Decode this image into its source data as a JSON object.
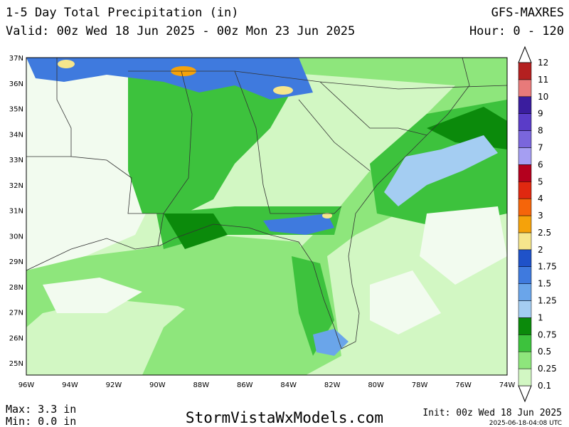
{
  "header": {
    "title": "1-5 Day Total Precipitation (in)",
    "valid": "Valid: 00z Wed 18 Jun 2025 - 00z Mon 23 Jun 2025",
    "model": "GFS-MAXRES",
    "hour": "Hour: 0 - 120"
  },
  "map": {
    "lat_labels": [
      "37N",
      "36N",
      "35N",
      "34N",
      "33N",
      "32N",
      "31N",
      "30N",
      "29N",
      "28N",
      "27N",
      "26N",
      "25N"
    ],
    "lon_labels": [
      "96W",
      "94W",
      "92W",
      "90W",
      "88W",
      "86W",
      "84W",
      "82W",
      "80W",
      "78W",
      "76W",
      "74W"
    ]
  },
  "legend": {
    "levels": [
      "0.1",
      "0.25",
      "0.5",
      "0.75",
      "1",
      "1.25",
      "1.5",
      "1.75",
      "2",
      "2.5",
      "3",
      "4",
      "5",
      "6",
      "7",
      "8",
      "9",
      "10",
      "11",
      "12"
    ],
    "colors": [
      "#d2f7c3",
      "#8ee67c",
      "#3dc23d",
      "#0b8a0b",
      "#a4cdf2",
      "#6aa5ea",
      "#3f7ade",
      "#1f52c9",
      "#f6e68c",
      "#f5a20a",
      "#f5650a",
      "#e02810",
      "#b4001e",
      "#a59ef2",
      "#7a66dc",
      "#5a3cc8",
      "#3a1d9e",
      "#e87a7a",
      "#b42020"
    ]
  },
  "footer": {
    "max": "Max: 3.3 in",
    "min": "Min: 0.0 in",
    "site": "StormVistaWxModels.com",
    "init": "Init: 00z Wed 18 Jun 2025",
    "timestamp": "2025-06-18-04:08 UTC"
  }
}
